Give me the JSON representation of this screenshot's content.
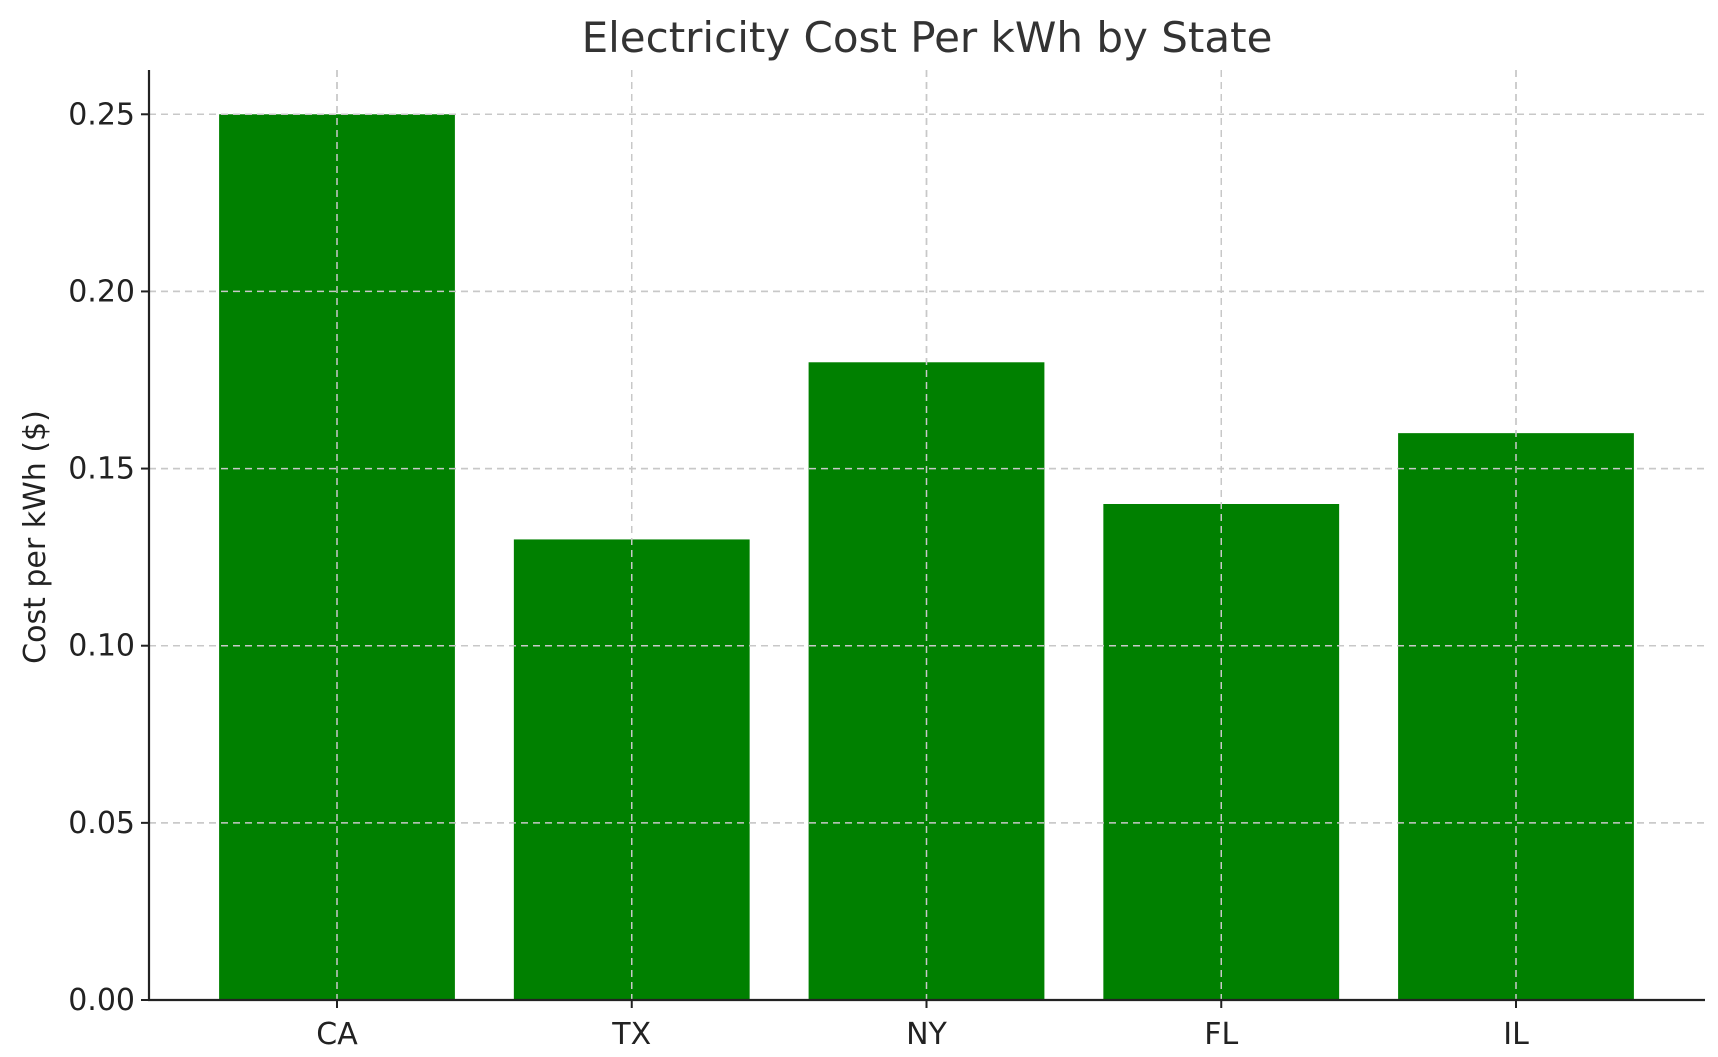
{
  "chart_data": {
    "type": "bar",
    "title": "Electricity Cost Per kWh by State",
    "xlabel": "",
    "ylabel": "Cost per kWh ($)",
    "categories": [
      "CA",
      "TX",
      "NY",
      "FL",
      "IL"
    ],
    "values": [
      0.25,
      0.13,
      0.18,
      0.14,
      0.16
    ],
    "ylim": [
      0,
      0.2625
    ],
    "yticks": [
      "0.00",
      "0.05",
      "0.10",
      "0.15",
      "0.20",
      "0.25"
    ],
    "grid": true,
    "bar_color": "#008000",
    "legend": "none"
  }
}
